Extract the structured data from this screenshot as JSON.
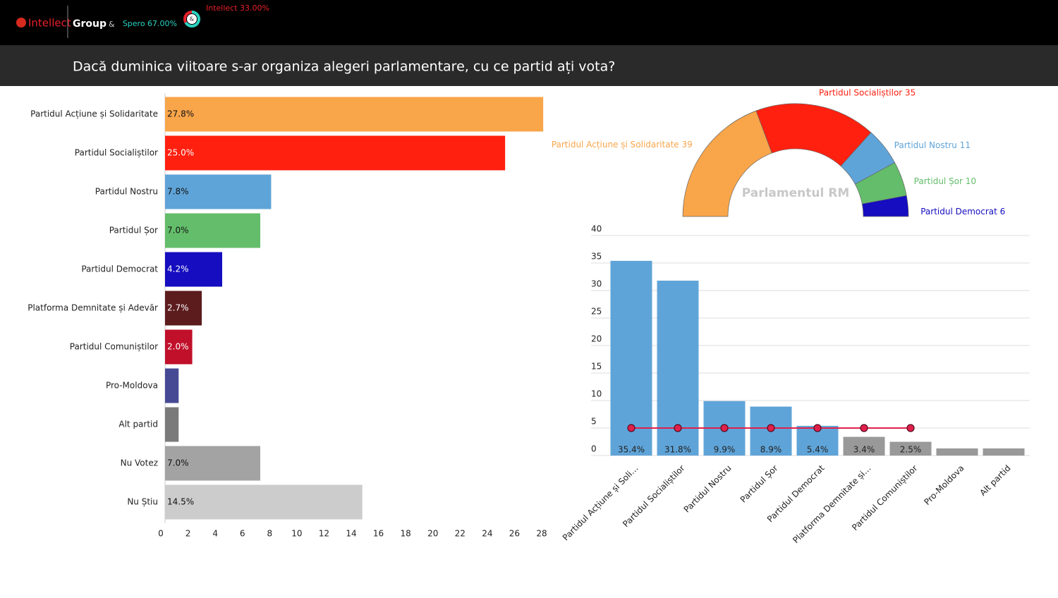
{
  "header": {
    "brand": "Intellect",
    "group": "Group",
    "separator": "&",
    "title": "Dacă duminica viitoare s-ar organiza alegeri parlamentare, cu ce partid ați vota?"
  },
  "chart_data": [
    {
      "type": "donut",
      "labels": [
        "Spero 67.00%",
        "Intellect 33.00%"
      ],
      "values": [
        67,
        33
      ],
      "colors": [
        "#2ad3c0",
        "#e8202a"
      ],
      "center_label": "&"
    },
    {
      "type": "hbar",
      "categories": [
        "Partidul Acțiune și Solidaritate",
        "Partidul Socialiștilor",
        "Partidul Nostru",
        "Partidul Șor",
        "Partidul Democrat",
        "Platforma Demnitate și Adevăr",
        "Partidul Comuniștilor",
        "Pro-Moldova",
        "Alt partid",
        "Nu Votez",
        "Nu Știu"
      ],
      "values": [
        27.8,
        25.0,
        7.8,
        7.0,
        4.2,
        2.7,
        2.0,
        1.0,
        1.0,
        7.0,
        14.5
      ],
      "value_labels": [
        "27.8%",
        "25.0%",
        "7.8%",
        "7.0%",
        "4.2%",
        "2.7%",
        "2.0%",
        null,
        null,
        "7.0%",
        "14.5%"
      ],
      "colors": [
        "#f9a54a",
        "#ff2010",
        "#5fa4d8",
        "#63bd6a",
        "#150dbf",
        "#5c1c1e",
        "#c0102a",
        "#464a94",
        "#7a7a7a",
        "#a3a3a3",
        "#cccccc"
      ],
      "xlim": [
        0,
        28
      ],
      "xticks": [
        0,
        2,
        4,
        6,
        8,
        10,
        12,
        14,
        16,
        18,
        20,
        22,
        24,
        26,
        28
      ]
    },
    {
      "type": "semi-donut",
      "title": "Parlamentul RM",
      "labels": [
        "Partidul Acțiune și Solidaritate 39",
        "Partidul Socialiștilor 35",
        "Partidul Nostru 11",
        "Partidul Șor 10",
        "Partidul Democrat 6"
      ],
      "values": [
        39,
        35,
        11,
        10,
        6
      ],
      "colors": [
        "#f9a54a",
        "#ff2010",
        "#5fa4d8",
        "#63bd6a",
        "#150dbf"
      ]
    },
    {
      "type": "bar",
      "categories": [
        "Partidul Acțiune și Soli…",
        "Partidul Socialiștilor",
        "Partidul Nostru",
        "Partidul Șor",
        "Partidul Democrat",
        "Platforma Demnitate și…",
        "Partidul Comuniștilor",
        "Pro-Moldova",
        "Alt partid"
      ],
      "values": [
        35.4,
        31.8,
        9.9,
        8.9,
        5.4,
        3.4,
        2.5,
        1.3,
        1.3
      ],
      "value_labels": [
        "35.4%",
        "31.8%",
        "9.9%",
        "8.9%",
        "5.4%",
        "3.4%",
        "2.5%",
        null,
        null
      ],
      "colors": [
        "#5fa4d8",
        "#5fa4d8",
        "#5fa4d8",
        "#5fa4d8",
        "#5fa4d8",
        "#999999",
        "#999999",
        "#999999",
        "#999999"
      ],
      "line": {
        "values": [
          5,
          5,
          5,
          5,
          5,
          5,
          5,
          null,
          null
        ],
        "color": "#e0204a"
      },
      "ylim": [
        0,
        40
      ],
      "yticks": [
        0,
        5,
        10,
        15,
        20,
        25,
        30,
        35,
        40
      ],
      "grid": true
    }
  ]
}
